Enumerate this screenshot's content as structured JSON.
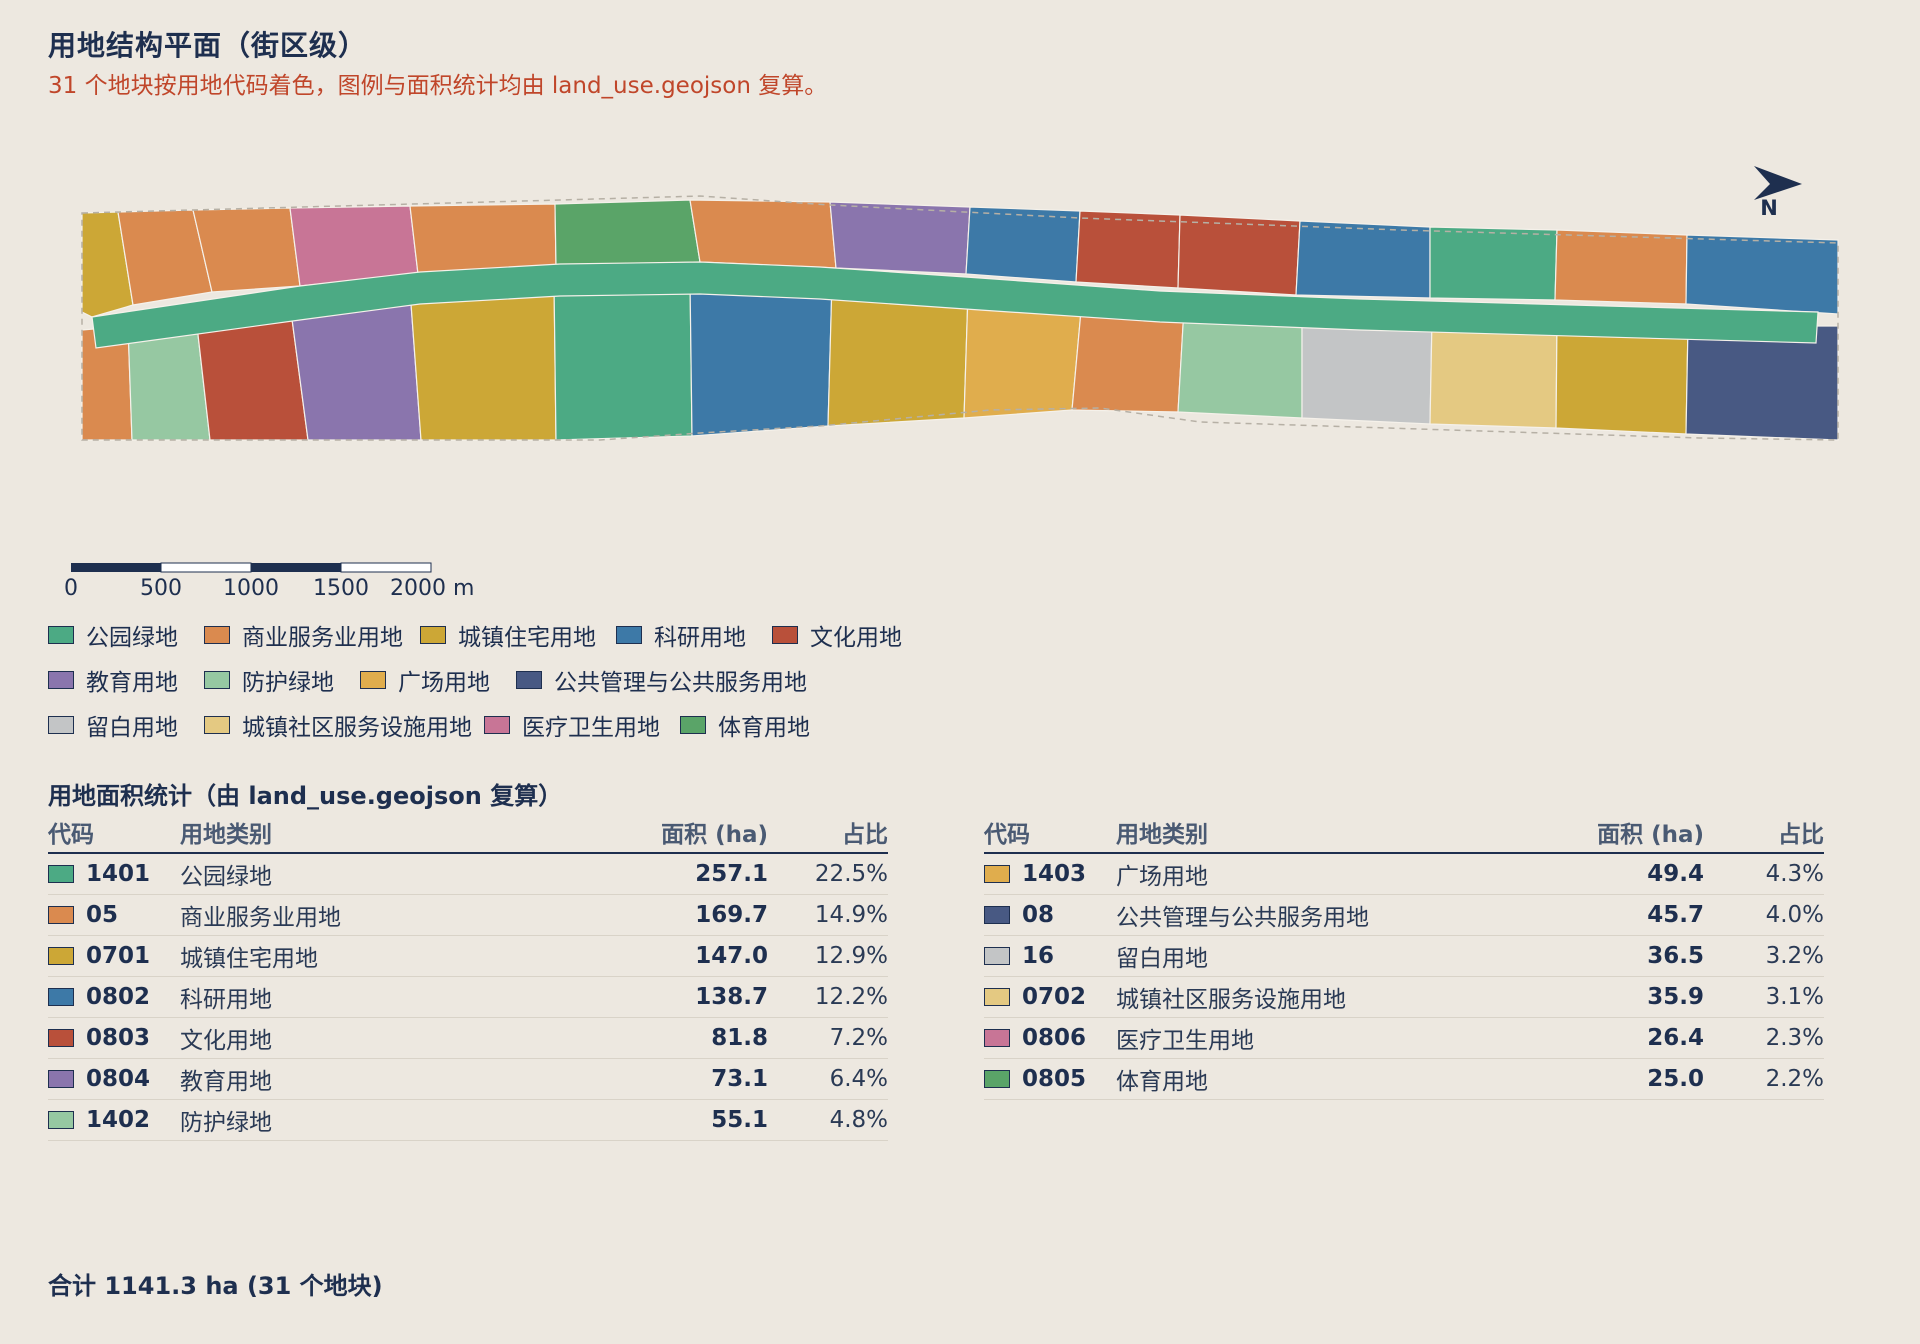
{
  "title": "用地结构平面（街区级）",
  "subtitle": "31 个地块按用地代码着色，图例与面积统计均由 land_use.geojson 复算。",
  "north_label": "N",
  "scale": {
    "ticks": [
      "0",
      "500",
      "1000",
      "1500",
      "2000 m"
    ]
  },
  "colors": {
    "1401": "#4caa84",
    "05": "#da8a4f",
    "0701": "#cca736",
    "0802": "#3d79a7",
    "0803": "#b9503a",
    "0804": "#8a75ad",
    "1402": "#96c8a2",
    "1403": "#e0ad4d",
    "08": "#485983",
    "16": "#c3c5c6",
    "0702": "#e4c982",
    "0806": "#c87596",
    "0805": "#5aa468"
  },
  "legend": [
    [
      {
        "code": "1401",
        "label": "公园绿地"
      },
      {
        "code": "05",
        "label": "商业服务业用地"
      },
      {
        "code": "0701",
        "label": "城镇住宅用地"
      },
      {
        "code": "0802",
        "label": "科研用地"
      },
      {
        "code": "0803",
        "label": "文化用地"
      }
    ],
    [
      {
        "code": "0804",
        "label": "教育用地"
      },
      {
        "code": "1402",
        "label": "防护绿地"
      },
      {
        "code": "1403",
        "label": "广场用地"
      },
      {
        "code": "08",
        "label": "公共管理与公共服务用地"
      }
    ],
    [
      {
        "code": "16",
        "label": "留白用地"
      },
      {
        "code": "0702",
        "label": "城镇社区服务设施用地"
      },
      {
        "code": "0806",
        "label": "医疗卫生用地"
      },
      {
        "code": "0805",
        "label": "体育用地"
      }
    ]
  ],
  "stats": {
    "title": "用地面积统计（由 land_use.geojson 复算）",
    "headers": {
      "code": "代码",
      "name": "用地类别",
      "area": "面积 (ha)",
      "pct": "占比"
    },
    "left": [
      {
        "code": "1401",
        "name": "公园绿地",
        "area": "257.1",
        "pct": "22.5%"
      },
      {
        "code": "05",
        "name": "商业服务业用地",
        "area": "169.7",
        "pct": "14.9%"
      },
      {
        "code": "0701",
        "name": "城镇住宅用地",
        "area": "147.0",
        "pct": "12.9%"
      },
      {
        "code": "0802",
        "name": "科研用地",
        "area": "138.7",
        "pct": "12.2%"
      },
      {
        "code": "0803",
        "name": "文化用地",
        "area": "81.8",
        "pct": "7.2%"
      },
      {
        "code": "0804",
        "name": "教育用地",
        "area": "73.1",
        "pct": "6.4%"
      },
      {
        "code": "1402",
        "name": "防护绿地",
        "area": "55.1",
        "pct": "4.8%"
      }
    ],
    "right": [
      {
        "code": "1403",
        "name": "广场用地",
        "area": "49.4",
        "pct": "4.3%"
      },
      {
        "code": "08",
        "name": "公共管理与公共服务用地",
        "area": "45.7",
        "pct": "4.0%"
      },
      {
        "code": "16",
        "name": "留白用地",
        "area": "36.5",
        "pct": "3.2%"
      },
      {
        "code": "0702",
        "name": "城镇社区服务设施用地",
        "area": "35.9",
        "pct": "3.1%"
      },
      {
        "code": "0806",
        "name": "医疗卫生用地",
        "area": "26.4",
        "pct": "2.3%"
      },
      {
        "code": "0805",
        "name": "体育用地",
        "area": "25.0",
        "pct": "2.2%"
      }
    ]
  },
  "total": "合计 1141.3 ha (31 个地块)",
  "parcels": {
    "north": [
      "0701",
      "05",
      "05",
      "0806",
      "05",
      "0805",
      "05",
      "0804",
      "0802",
      "0803",
      "0803",
      "0802",
      "1401",
      "05",
      "0802"
    ],
    "south": [
      "05",
      "1402",
      "0803",
      "0804",
      "0701",
      "1401",
      "0802",
      "0701",
      "1403",
      "05",
      "1402",
      "16",
      "0702",
      "0701",
      "08"
    ],
    "road": "1401"
  }
}
